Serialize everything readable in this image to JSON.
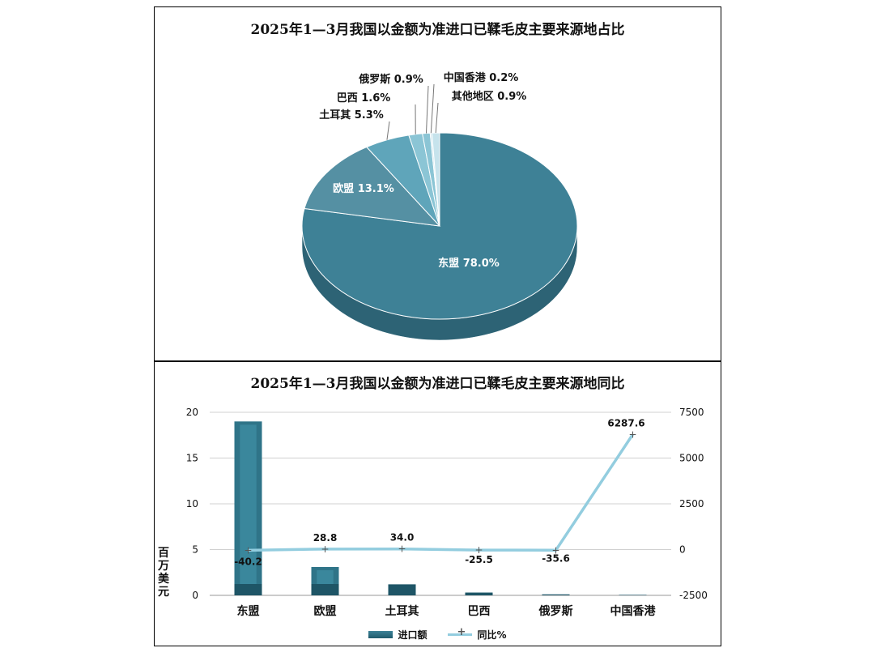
{
  "chart_data": [
    {
      "type": "pie",
      "title": "2025年1—3月我国以金额为准进口已鞣毛皮主要来源地占比",
      "slices": [
        {
          "label": "东盟",
          "value": 78.0,
          "display": "东盟 78.0%"
        },
        {
          "label": "欧盟",
          "value": 13.1,
          "display": "欧盟 13.1%"
        },
        {
          "label": "土耳其",
          "value": 5.3,
          "display": "土耳其 5.3%"
        },
        {
          "label": "巴西",
          "value": 1.6,
          "display": "巴西 1.6%"
        },
        {
          "label": "俄罗斯",
          "value": 0.9,
          "display": "俄罗斯 0.9%"
        },
        {
          "label": "中国香港",
          "value": 0.2,
          "display": "中国香港 0.2%"
        },
        {
          "label": "其他地区",
          "value": 0.9,
          "display": "其他地区 0.9%"
        }
      ],
      "colors": {
        "main": "#3e8196",
        "side": "#2d6375",
        "light": "#5fa5ba",
        "lighter": "#8bc5d5",
        "lightest": "#c6e3ec"
      }
    },
    {
      "type": "bar",
      "title": "2025年1—3月我国以金额为准进口已鞣毛皮主要来源地同比",
      "categories": [
        "东盟",
        "欧盟",
        "土耳其",
        "巴西",
        "俄罗斯",
        "中国香港"
      ],
      "series": [
        {
          "name": "进口额",
          "type": "bar",
          "axis": "left",
          "values": [
            19.0,
            3.1,
            1.2,
            0.3,
            0.1,
            0.05
          ],
          "color": "#2f7488"
        },
        {
          "name": "同比%",
          "type": "line",
          "axis": "right",
          "values": [
            -40.2,
            28.8,
            34.0,
            -25.5,
            -35.6,
            6287.6
          ],
          "labels": [
            "-40.2",
            "28.8",
            "34.0",
            "-25.5",
            "-35.6",
            "6287.6"
          ],
          "color": "#93cddf"
        }
      ],
      "ylabel": "百万美元",
      "ylim": [
        0,
        20
      ],
      "yticks": [
        "0",
        "5",
        "10",
        "15",
        "20"
      ],
      "y2lim": [
        -2500,
        7500
      ],
      "y2ticks": [
        "-2500",
        "0",
        "2500",
        "5000",
        "7500"
      ],
      "grid": true,
      "legend_position": "bottom"
    }
  ]
}
